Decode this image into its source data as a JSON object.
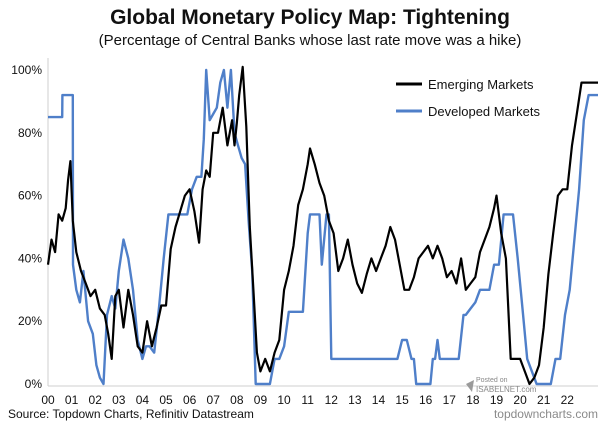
{
  "chart_data": {
    "type": "line",
    "title": "Global Monetary Policy Map: Tightening",
    "subtitle": "(Percentage of Central Banks whose last rate move was a hike)",
    "xlabel": "",
    "ylabel": "",
    "x_tick_labels": [
      "00",
      "01",
      "02",
      "03",
      "04",
      "05",
      "06",
      "07",
      "08",
      "09",
      "10",
      "11",
      "12",
      "13",
      "14",
      "15",
      "16",
      "17",
      "18",
      "19",
      "20",
      "21",
      "22"
    ],
    "y_tick_labels": [
      "0%",
      "20%",
      "40%",
      "60%",
      "80%",
      "100%"
    ],
    "y_ticks": [
      0,
      20,
      40,
      60,
      80,
      100
    ],
    "xlim": [
      2000.0,
      2023.3
    ],
    "ylim": [
      0,
      100
    ],
    "grid": false,
    "legend_position": "top-right",
    "series": [
      {
        "name": "Emerging Markets",
        "color": "#000000",
        "x": [
          2000.0,
          2000.15,
          2000.3,
          2000.45,
          2000.6,
          2000.75,
          2000.85,
          2000.95,
          2001.05,
          2001.2,
          2001.4,
          2001.6,
          2001.8,
          2002.0,
          2002.2,
          2002.4,
          2002.55,
          2002.7,
          2002.85,
          2003.0,
          2003.2,
          2003.4,
          2003.6,
          2003.8,
          2004.0,
          2004.2,
          2004.4,
          2004.6,
          2004.8,
          2005.0,
          2005.2,
          2005.4,
          2005.6,
          2005.8,
          2006.0,
          2006.2,
          2006.4,
          2006.55,
          2006.7,
          2006.85,
          2007.0,
          2007.2,
          2007.4,
          2007.6,
          2007.8,
          2007.9,
          2008.0,
          2008.1,
          2008.25,
          2008.4,
          2008.55,
          2008.7,
          2008.85,
          2009.0,
          2009.2,
          2009.4,
          2009.6,
          2009.8,
          2010.0,
          2010.2,
          2010.4,
          2010.6,
          2010.8,
          2011.0,
          2011.1,
          2011.3,
          2011.5,
          2011.7,
          2011.9,
          2012.1,
          2012.3,
          2012.5,
          2012.7,
          2012.9,
          2013.1,
          2013.3,
          2013.5,
          2013.7,
          2013.9,
          2014.1,
          2014.3,
          2014.5,
          2014.7,
          2014.9,
          2015.1,
          2015.3,
          2015.5,
          2015.7,
          2015.9,
          2016.1,
          2016.3,
          2016.5,
          2016.7,
          2016.9,
          2017.1,
          2017.3,
          2017.5,
          2017.7,
          2017.9,
          2018.1,
          2018.3,
          2018.5,
          2018.7,
          2018.9,
          2019.0,
          2019.2,
          2019.4,
          2019.6,
          2019.8,
          2020.0,
          2020.2,
          2020.4,
          2020.6,
          2020.8,
          2021.0,
          2021.2,
          2021.4,
          2021.6,
          2021.8,
          2022.0,
          2022.2,
          2022.4,
          2022.6,
          2022.8,
          2023.0,
          2023.3
        ],
        "y": [
          38,
          46,
          42,
          54,
          52,
          56,
          65,
          71,
          52,
          42,
          36,
          32,
          28,
          30,
          24,
          22,
          16,
          8,
          28,
          30,
          18,
          30,
          22,
          12,
          10,
          20,
          12,
          18,
          25,
          25,
          43,
          50,
          55,
          60,
          62,
          55,
          45,
          62,
          68,
          66,
          80,
          80,
          88,
          76,
          84,
          76,
          83,
          92,
          101,
          82,
          50,
          30,
          10,
          4,
          8,
          4,
          10,
          14,
          30,
          36,
          44,
          57,
          62,
          70,
          75,
          70,
          64,
          60,
          52,
          48,
          36,
          40,
          46,
          38,
          32,
          29,
          35,
          40,
          36,
          40,
          44,
          50,
          46,
          38,
          30,
          30,
          34,
          40,
          42,
          44,
          40,
          44,
          40,
          34,
          36,
          32,
          40,
          30,
          32,
          34,
          42,
          46,
          50,
          56,
          60,
          48,
          40,
          8,
          8,
          8,
          4,
          0,
          2,
          6,
          18,
          35,
          48,
          60,
          62,
          62,
          76,
          86,
          96,
          96,
          96,
          96
        ]
      },
      {
        "name": "Developed Markets",
        "color": "#4f7fc9",
        "x": [
          2000.0,
          2000.6,
          2000.61,
          2001.05,
          2001.06,
          2001.2,
          2001.35,
          2001.5,
          2001.7,
          2001.9,
          2002.05,
          2002.2,
          2002.35,
          2002.5,
          2002.7,
          2002.85,
          2003.0,
          2003.2,
          2003.4,
          2003.6,
          2003.8,
          2004.0,
          2004.15,
          2004.3,
          2004.5,
          2004.7,
          2004.9,
          2005.1,
          2005.3,
          2005.5,
          2005.7,
          2005.9,
          2006.1,
          2006.3,
          2006.5,
          2006.6,
          2006.7,
          2006.85,
          2007.0,
          2007.15,
          2007.3,
          2007.45,
          2007.6,
          2007.75,
          2007.9,
          2008.05,
          2008.2,
          2008.35,
          2008.5,
          2008.65,
          2008.8,
          2009.0,
          2009.2,
          2009.4,
          2009.6,
          2009.8,
          2010.0,
          2010.2,
          2010.4,
          2010.6,
          2010.8,
          2011.0,
          2011.1,
          2011.2,
          2011.3,
          2011.5,
          2011.6,
          2011.8,
          2011.9,
          2012.0,
          2012.5,
          2013.0,
          2013.5,
          2014.0,
          2014.2,
          2014.4,
          2014.6,
          2014.8,
          2015.0,
          2015.2,
          2015.4,
          2015.5,
          2015.6,
          2015.7,
          2015.8,
          2016.0,
          2016.2,
          2016.3,
          2016.4,
          2016.5,
          2016.6,
          2016.8,
          2017.0,
          2017.2,
          2017.4,
          2017.6,
          2017.7,
          2017.9,
          2018.1,
          2018.3,
          2018.5,
          2018.7,
          2018.9,
          2019.1,
          2019.3,
          2019.5,
          2019.7,
          2019.9,
          2020.1,
          2020.3,
          2020.5,
          2020.7,
          2020.9,
          2021.1,
          2021.3,
          2021.5,
          2021.7,
          2021.9,
          2022.1,
          2022.3,
          2022.5,
          2022.7,
          2022.9,
          2023.3
        ],
        "y": [
          85,
          85,
          92,
          92,
          38,
          30,
          26,
          36,
          20,
          16,
          6,
          2,
          0,
          22,
          28,
          24,
          36,
          46,
          40,
          30,
          14,
          8,
          12,
          12,
          10,
          24,
          40,
          54,
          54,
          54,
          54,
          54,
          62,
          66,
          66,
          78,
          100,
          84,
          86,
          88,
          96,
          100,
          88,
          100,
          80,
          76,
          72,
          70,
          52,
          36,
          0,
          0,
          0,
          0,
          8,
          8,
          12,
          23,
          23,
          23,
          23,
          48,
          54,
          54,
          54,
          54,
          38,
          54,
          54,
          8,
          8,
          8,
          8,
          8,
          8,
          8,
          8,
          8,
          14,
          14,
          8,
          8,
          0,
          0,
          0,
          0,
          0,
          8,
          8,
          14,
          8,
          8,
          8,
          8,
          8,
          22,
          22,
          24,
          26,
          30,
          30,
          30,
          38,
          38,
          54,
          54,
          54,
          40,
          24,
          8,
          4,
          0,
          0,
          0,
          0,
          8,
          8,
          22,
          30,
          46,
          62,
          84,
          92,
          92
        ]
      }
    ],
    "source": "Source: Topdown Charts, Refinitiv Datastream",
    "website": "topdowncharts.com",
    "watermark_posted": "Posted on",
    "watermark_site": "ISABELNET.com"
  }
}
